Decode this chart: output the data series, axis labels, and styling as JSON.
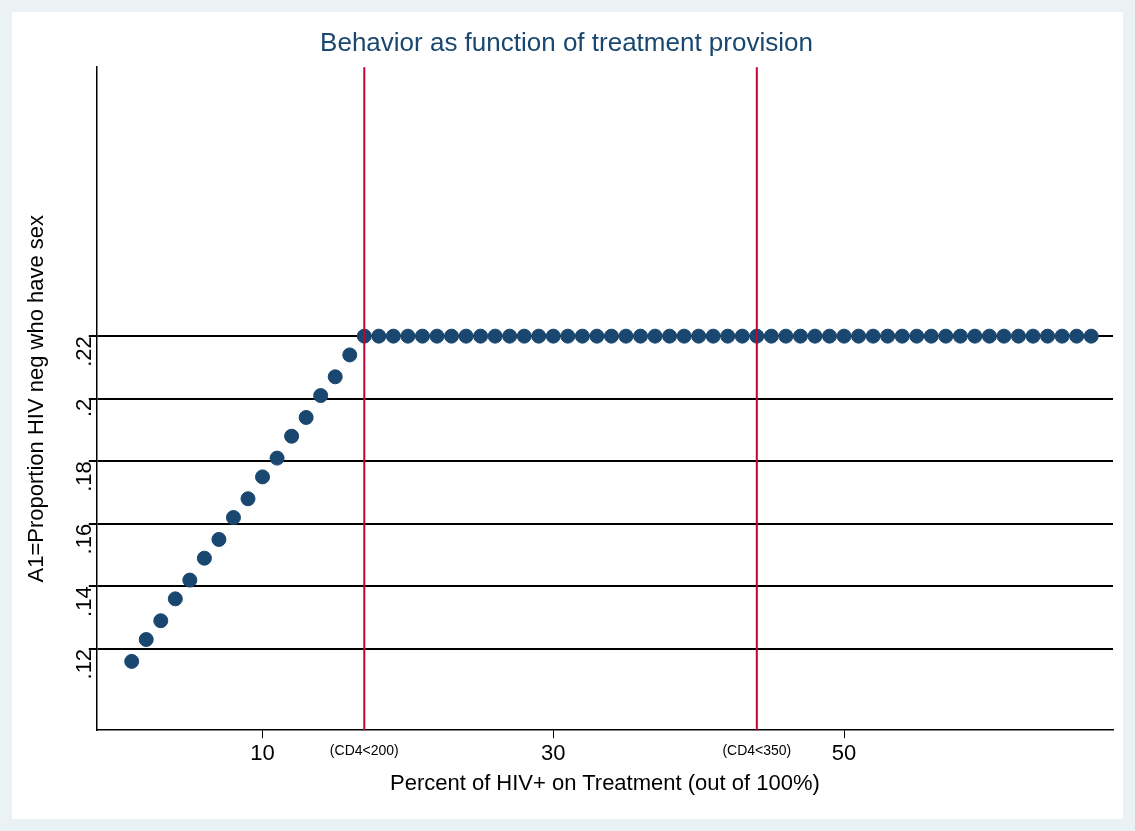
{
  "chart_data": {
    "type": "scatter",
    "title": "Behavior as function of treatment provision",
    "xlabel": "Percent of HIV+ on Treatment (out of 100%)",
    "ylabel": "A1=Proportion HIV neg who have sex",
    "x": [
      1,
      2,
      3,
      4,
      5,
      6,
      7,
      8,
      9,
      10,
      11,
      12,
      13,
      14,
      15,
      16,
      17,
      18,
      19,
      20,
      21,
      22,
      23,
      24,
      25,
      26,
      27,
      28,
      29,
      30,
      31,
      32,
      33,
      34,
      35,
      36,
      37,
      38,
      39,
      40,
      41,
      42,
      43,
      44,
      45,
      46,
      47,
      48,
      49,
      50,
      51,
      52,
      53,
      54,
      55,
      56,
      57,
      58,
      59,
      60,
      61,
      62,
      63,
      64,
      65,
      66,
      67
    ],
    "series": [
      {
        "color": "#1a476f",
        "values": [
          0.116,
          0.123,
          0.129,
          0.136,
          0.142,
          0.149,
          0.155,
          0.162,
          0.168,
          0.175,
          0.181,
          0.188,
          0.194,
          0.201,
          0.207,
          0.214,
          0.22,
          0.22,
          0.22,
          0.22,
          0.22,
          0.22,
          0.22,
          0.22,
          0.22,
          0.22,
          0.22,
          0.22,
          0.22,
          0.22,
          0.22,
          0.22,
          0.22,
          0.22,
          0.22,
          0.22,
          0.22,
          0.22,
          0.22,
          0.22,
          0.22,
          0.22,
          0.22,
          0.22,
          0.22,
          0.22,
          0.22,
          0.22,
          0.22,
          0.22,
          0.22,
          0.22,
          0.22,
          0.22,
          0.22,
          0.22,
          0.22,
          0.22,
          0.22,
          0.22,
          0.22,
          0.22,
          0.22,
          0.22,
          0.22,
          0.22,
          0.22
        ]
      }
    ],
    "xlim": [
      -1.4,
      68.5
    ],
    "xticks": [
      10,
      30,
      50
    ],
    "ylim": [
      0.094,
      0.306
    ],
    "yticks": [
      {
        "value": 0.12,
        "label": ".12"
      },
      {
        "value": 0.14,
        "label": ".14"
      },
      {
        "value": 0.16,
        "label": ".16"
      },
      {
        "value": 0.18,
        "label": ".18"
      },
      {
        "value": 0.2,
        "label": ".2"
      },
      {
        "value": 0.22,
        "label": ".22"
      }
    ],
    "ref_lines": [
      {
        "axis": "x",
        "value": 17,
        "label": "(CD4<200)",
        "color": "#c10534"
      },
      {
        "axis": "x",
        "value": 44,
        "label": "(CD4<350)",
        "color": "#c10534"
      }
    ],
    "grid": "y",
    "marker": "circle",
    "legend": false
  }
}
